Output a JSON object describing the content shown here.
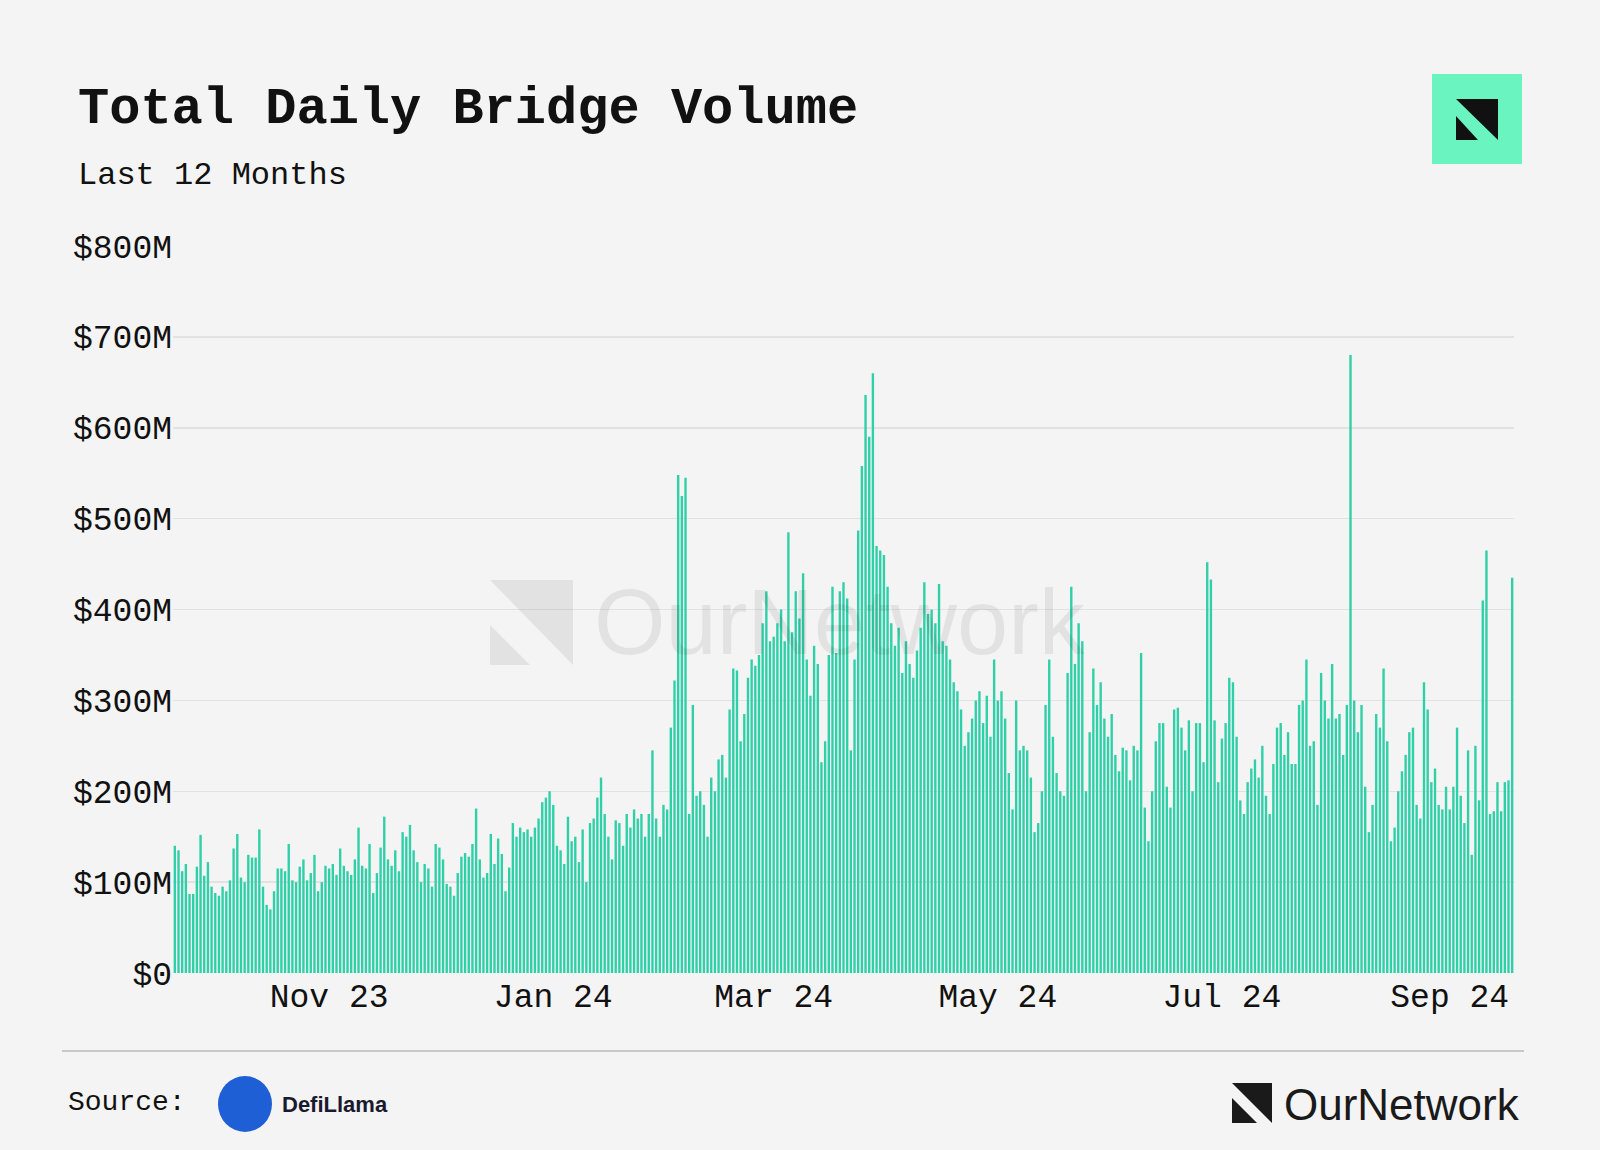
{
  "chart_data": {
    "type": "bar",
    "title": "Total Daily Bridge Volume",
    "subtitle": "Last 12 Months",
    "source": "Source:",
    "source_name": "DefiLlama",
    "brand": "OurNetwork",
    "color": "#2fd0a8",
    "grid": true,
    "ylim": [
      0,
      800
    ],
    "yticks": [
      {
        "value": 0,
        "label": "$0"
      },
      {
        "value": 100,
        "label": "$100M"
      },
      {
        "value": 200,
        "label": "$200M"
      },
      {
        "value": 300,
        "label": "$300M"
      },
      {
        "value": 400,
        "label": "$400M"
      },
      {
        "value": 500,
        "label": "$500M"
      },
      {
        "value": 600,
        "label": "$600M"
      },
      {
        "value": 700,
        "label": "$700M"
      },
      {
        "value": 800,
        "label": "$800M"
      }
    ],
    "categories": [
      null,
      null,
      null,
      null,
      null,
      null,
      null,
      null,
      null,
      null,
      null,
      null,
      null,
      null,
      null,
      null,
      null,
      null,
      null,
      null,
      null,
      null,
      null,
      null,
      null,
      null,
      null,
      null,
      null,
      null,
      null,
      null,
      null,
      null,
      null,
      null,
      null,
      null,
      null,
      null,
      null,
      null,
      "Nov 23",
      null,
      null,
      null,
      null,
      null,
      null,
      null,
      null,
      null,
      null,
      null,
      null,
      null,
      null,
      null,
      null,
      null,
      null,
      null,
      null,
      null,
      null,
      null,
      null,
      null,
      null,
      null,
      null,
      null,
      null,
      null,
      null,
      null,
      null,
      null,
      null,
      null,
      null,
      null,
      null,
      null,
      null,
      null,
      null,
      null,
      null,
      null,
      null,
      null,
      null,
      null,
      null,
      null,
      null,
      null,
      null,
      null,
      null,
      null,
      null,
      "Jan 24",
      null,
      null,
      null,
      null,
      null,
      null,
      null,
      null,
      null,
      null,
      null,
      null,
      null,
      null,
      null,
      null,
      null,
      null,
      null,
      null,
      null,
      null,
      null,
      null,
      null,
      null,
      null,
      null,
      null,
      null,
      null,
      null,
      null,
      null,
      null,
      null,
      null,
      null,
      null,
      null,
      null,
      null,
      null,
      null,
      null,
      null,
      null,
      null,
      null,
      null,
      null,
      null,
      null,
      null,
      null,
      null,
      null,
      null,
      null,
      "Mar 24",
      null,
      null,
      null,
      null,
      null,
      null,
      null,
      null,
      null,
      null,
      null,
      null,
      null,
      null,
      null,
      null,
      null,
      null,
      null,
      null,
      null,
      null,
      null,
      null,
      null,
      null,
      null,
      null,
      null,
      null,
      null,
      null,
      null,
      null,
      null,
      null,
      null,
      null,
      null,
      null,
      null,
      null,
      null,
      null,
      null,
      null,
      null,
      null,
      null,
      null,
      null,
      null,
      null,
      null,
      null,
      null,
      null,
      null,
      null,
      null,
      "May 24",
      null,
      null,
      null,
      null,
      null,
      null,
      null,
      null,
      null,
      null,
      null,
      null,
      null,
      null,
      null,
      null,
      null,
      null,
      null,
      null,
      null,
      null,
      null,
      null,
      null,
      null,
      null,
      null,
      null,
      null,
      null,
      null,
      null,
      null,
      null,
      null,
      null,
      null,
      null,
      null,
      null,
      null,
      null,
      null,
      null,
      null,
      null,
      null,
      null,
      null,
      null,
      null,
      null,
      null,
      null,
      null,
      null,
      null,
      null,
      null,
      "Jul 24",
      null,
      null,
      null,
      null,
      null,
      null,
      null,
      null,
      null,
      null,
      null,
      null,
      null,
      null,
      null,
      null,
      null,
      null,
      null,
      null,
      null,
      null,
      null,
      null,
      null,
      null,
      null,
      null,
      null,
      null,
      null,
      null,
      null,
      null,
      null,
      null,
      null,
      null,
      null,
      null,
      null,
      null,
      null,
      null,
      null,
      null,
      null,
      null,
      null,
      null,
      null,
      null,
      null,
      null,
      null,
      null,
      null,
      null,
      null,
      null,
      null,
      "Sep 24",
      null,
      null,
      null,
      null,
      null,
      null,
      null,
      null,
      null,
      null,
      null,
      null,
      null,
      null,
      null,
      null,
      null
    ],
    "values": [
      140,
      135,
      112,
      120,
      87,
      87,
      117,
      152,
      107,
      122,
      95,
      88,
      85,
      95,
      90,
      102,
      137,
      153,
      105,
      100,
      130,
      127,
      127,
      158,
      95,
      75,
      70,
      90,
      115,
      115,
      112,
      142,
      102,
      100,
      117,
      125,
      102,
      110,
      130,
      90,
      100,
      118,
      115,
      120,
      108,
      137,
      118,
      112,
      108,
      125,
      160,
      118,
      115,
      142,
      88,
      110,
      138,
      172,
      125,
      118,
      135,
      112,
      155,
      150,
      163,
      135,
      122,
      100,
      120,
      115,
      95,
      142,
      138,
      125,
      98,
      95,
      85,
      110,
      128,
      132,
      128,
      142,
      181,
      125,
      105,
      110,
      153,
      120,
      148,
      131,
      90,
      116,
      165,
      150,
      160,
      155,
      158,
      150,
      160,
      170,
      188,
      193,
      200,
      185,
      140,
      135,
      120,
      172,
      145,
      150,
      122,
      158,
      100,
      165,
      170,
      193,
      215,
      175,
      150,
      125,
      168,
      165,
      140,
      175,
      160,
      180,
      170,
      175,
      150,
      175,
      245,
      170,
      150,
      185,
      180,
      270,
      322,
      548,
      525,
      545,
      175,
      295,
      195,
      200,
      185,
      150,
      215,
      200,
      235,
      240,
      215,
      290,
      335,
      333,
      255,
      285,
      325,
      345,
      338,
      350,
      385,
      420,
      365,
      370,
      385,
      400,
      365,
      485,
      375,
      420,
      390,
      440,
      345,
      305,
      360,
      340,
      232,
      255,
      350,
      425,
      352,
      420,
      430,
      412,
      245,
      345,
      487,
      558,
      636,
      590,
      660,
      470,
      465,
      460,
      425,
      385,
      360,
      380,
      330,
      365,
      340,
      325,
      355,
      380,
      430,
      395,
      400,
      385,
      428,
      365,
      360,
      345,
      320,
      310,
      290,
      250,
      265,
      280,
      300,
      310,
      275,
      305,
      260,
      345,
      300,
      310,
      280,
      220,
      180,
      300,
      245,
      250,
      245,
      215,
      155,
      165,
      200,
      295,
      345,
      260,
      220,
      200,
      195,
      330,
      425,
      340,
      385,
      365,
      200,
      265,
      335,
      295,
      320,
      280,
      260,
      285,
      240,
      222,
      248,
      245,
      212,
      250,
      245,
      352,
      182,
      145,
      200,
      255,
      275,
      275,
      205,
      182,
      290,
      292,
      270,
      245,
      278,
      200,
      275,
      275,
      232,
      452,
      433,
      278,
      210,
      258,
      275,
      325,
      320,
      260,
      190,
      175,
      210,
      225,
      235,
      215,
      250,
      195,
      175,
      230,
      270,
      275,
      240,
      265,
      230,
      230,
      295,
      300,
      345,
      250,
      255,
      185,
      330,
      300,
      280,
      340,
      280,
      285,
      240,
      295,
      680,
      300,
      265,
      295,
      205,
      155,
      185,
      285,
      270,
      335,
      255,
      145,
      160,
      200,
      222,
      240,
      265,
      270,
      185,
      170,
      320,
      290,
      210,
      225,
      185,
      180,
      205,
      180,
      205,
      270,
      195,
      165,
      245,
      130,
      250,
      190,
      410,
      465,
      175,
      178,
      210,
      178,
      210,
      212,
      435
    ]
  }
}
